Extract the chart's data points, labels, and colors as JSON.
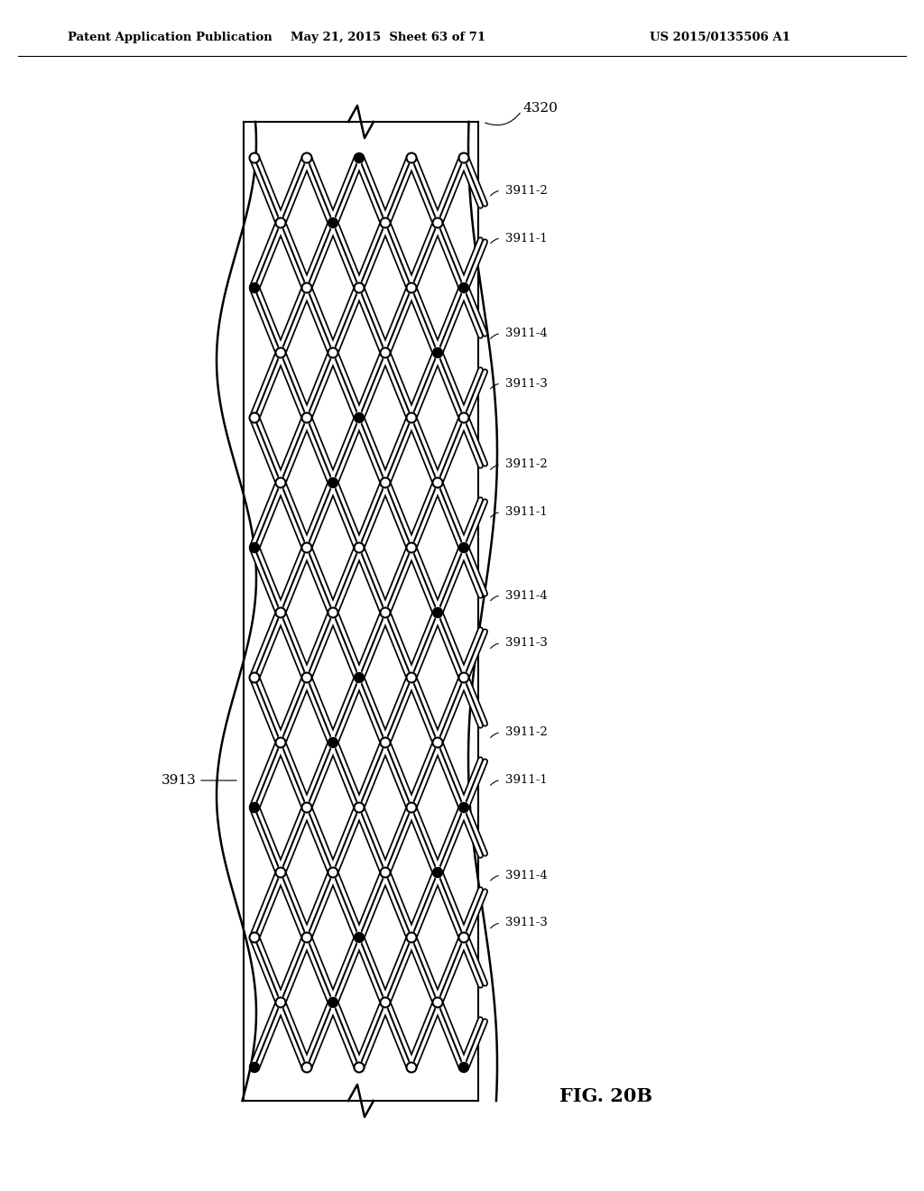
{
  "bg_color": "#ffffff",
  "header_left": "Patent Application Publication",
  "header_mid": "May 21, 2015  Sheet 63 of 71",
  "header_right": "US 2015/0135506 A1",
  "fig_label": "FIG. 20B",
  "label_4320": "4320",
  "label_3913": "3913",
  "right_labels": [
    [
      0.84,
      "3911-2"
    ],
    [
      0.8,
      "3911-1"
    ],
    [
      0.72,
      "3911-4"
    ],
    [
      0.678,
      "3911-3"
    ],
    [
      0.61,
      "3911-2"
    ],
    [
      0.57,
      "3911-1"
    ],
    [
      0.5,
      "3911-4"
    ],
    [
      0.46,
      "3911-3"
    ],
    [
      0.385,
      "3911-2"
    ],
    [
      0.345,
      "3911-1"
    ],
    [
      0.265,
      "3911-4"
    ],
    [
      0.225,
      "3911-3"
    ]
  ]
}
